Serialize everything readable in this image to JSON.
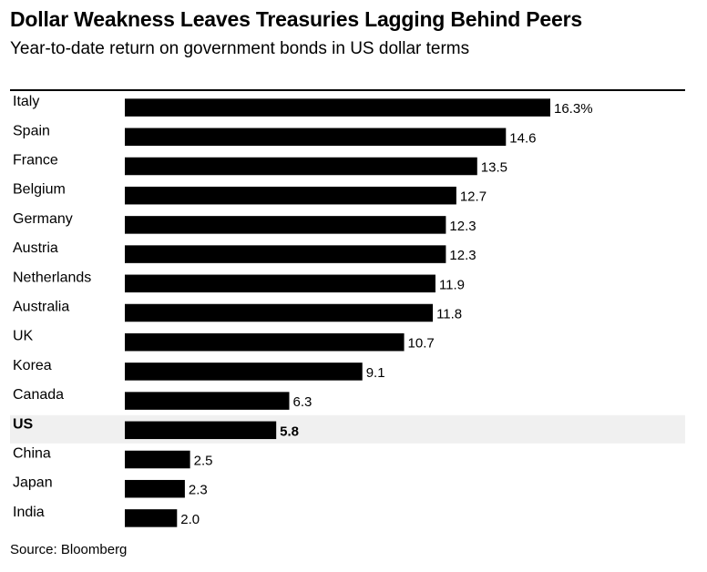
{
  "title": "Dollar Weakness Leaves Treasuries Lagging Behind Peers",
  "subtitle": "Year-to-date return on government bonds in US dollar terms",
  "source": "Source: Bloomberg",
  "chart_data": {
    "type": "bar",
    "orientation": "horizontal",
    "categories": [
      "Italy",
      "Spain",
      "France",
      "Belgium",
      "Germany",
      "Austria",
      "Netherlands",
      "Australia",
      "UK",
      "Korea",
      "Canada",
      "US",
      "China",
      "Japan",
      "India"
    ],
    "values": [
      16.3,
      14.6,
      13.5,
      12.7,
      12.3,
      12.3,
      11.9,
      11.8,
      10.7,
      9.1,
      6.3,
      5.8,
      2.5,
      2.3,
      2.0
    ],
    "value_labels": [
      "16.3%",
      "14.6",
      "13.5",
      "12.7",
      "12.3",
      "12.3",
      "11.9",
      "11.8",
      "10.7",
      "9.1",
      "6.3",
      "5.8",
      "2.5",
      "2.3",
      "2.0"
    ],
    "highlight": "US",
    "bar_color": "#000000",
    "highlight_background": "#f0f0f0",
    "xlim": [
      0,
      16.3
    ],
    "grid": false
  }
}
